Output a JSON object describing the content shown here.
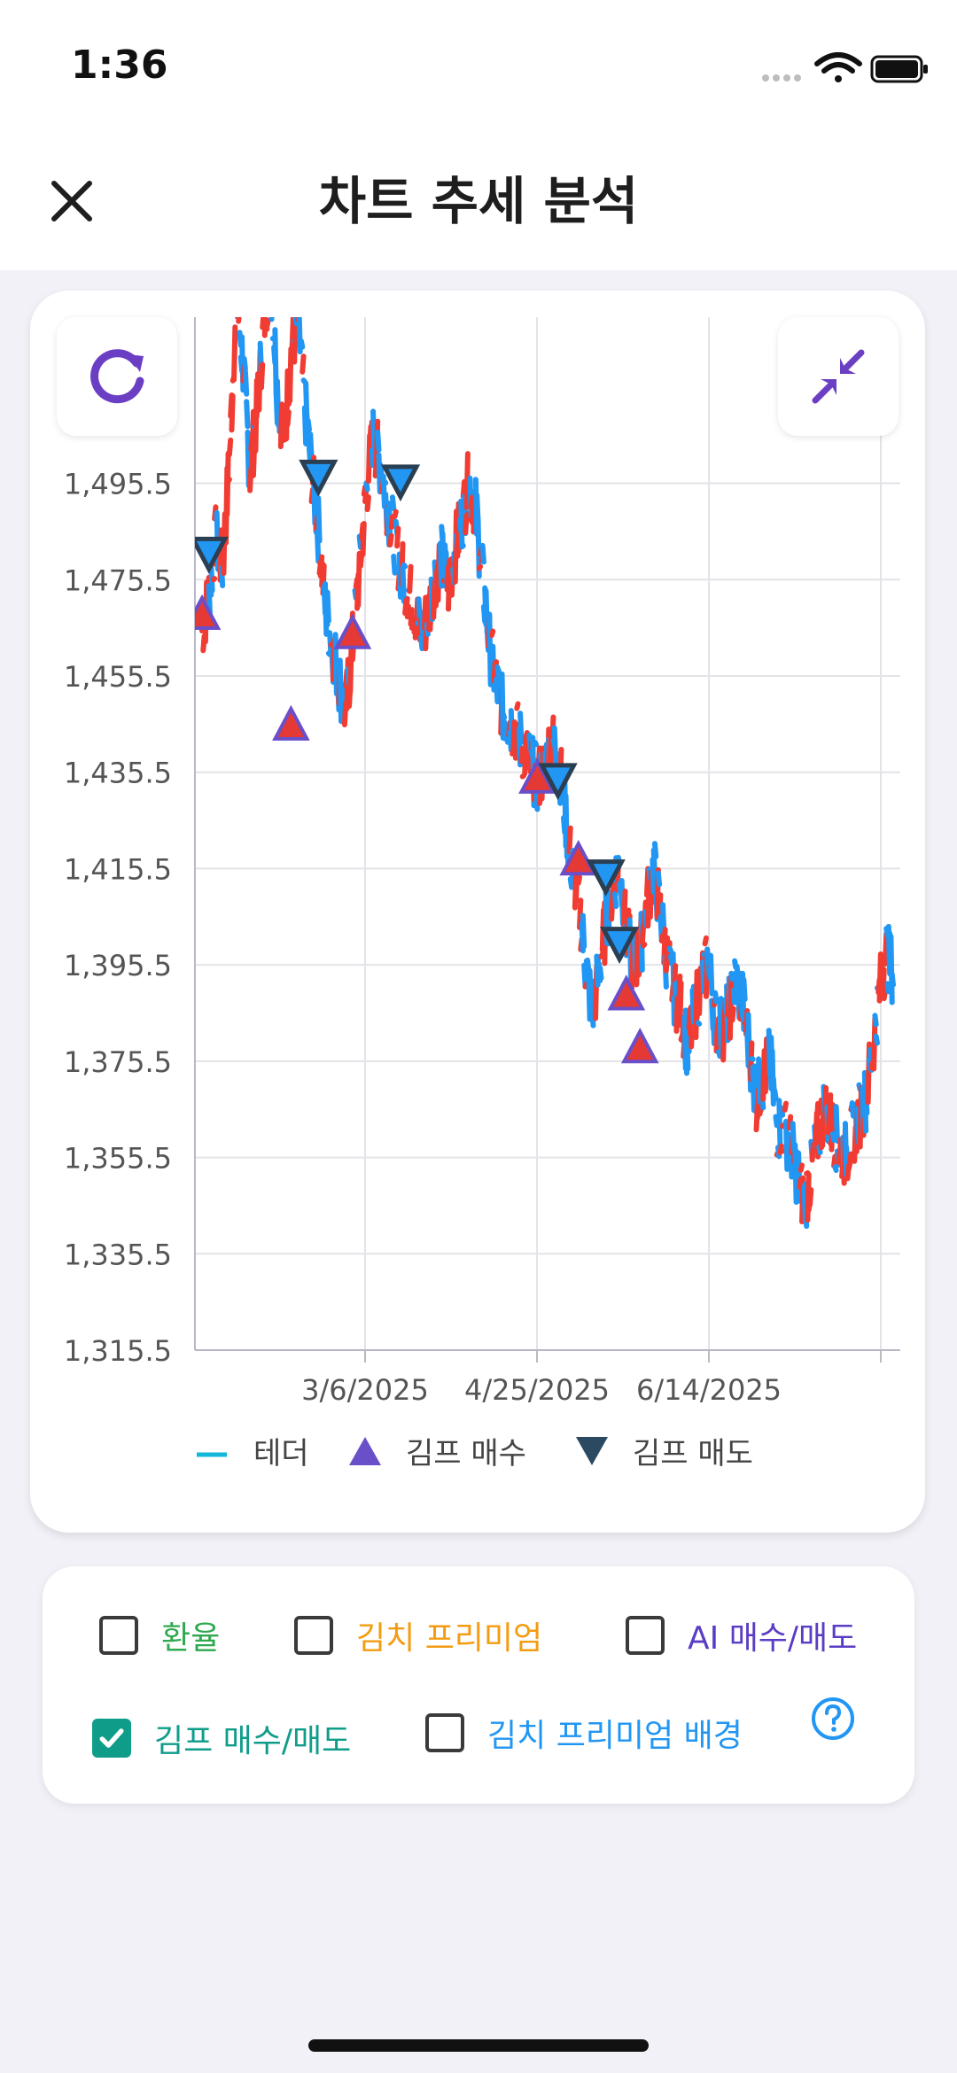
{
  "status": {
    "time": "1:36"
  },
  "header": {
    "title": "차트 추세 분석"
  },
  "chart_data": {
    "type": "line",
    "y_ticks": [
      "1,495.5",
      "1,475.5",
      "1,455.5",
      "1,435.5",
      "1,415.5",
      "1,395.5",
      "1,375.5",
      "1,355.5",
      "1,335.5",
      "1,315.5"
    ],
    "ylim": [
      1315.5,
      1530
    ],
    "x_ticks": [
      "3/6/2025",
      "4/25/2025",
      "6/14/2025"
    ],
    "series": [
      {
        "name": "테더",
        "color": "#2196f3",
        "values": [
          1465,
          1472,
          1484,
          1478,
          1500,
          1535,
          1520,
          1498,
          1510,
          1528,
          1540,
          1515,
          1505,
          1522,
          1530,
          1512,
          1498,
          1486,
          1470,
          1462,
          1455,
          1448,
          1462,
          1478,
          1494,
          1505,
          1500,
          1492,
          1485,
          1478,
          1474,
          1470,
          1464,
          1468,
          1476,
          1480,
          1474,
          1482,
          1488,
          1496,
          1490,
          1476,
          1462,
          1454,
          1448,
          1446,
          1444,
          1440,
          1437,
          1434,
          1436,
          1442,
          1440,
          1428,
          1416,
          1410,
          1396,
          1386,
          1394,
          1404,
          1412,
          1416,
          1402,
          1396,
          1398,
          1408,
          1416,
          1406,
          1396,
          1390,
          1386,
          1378,
          1386,
          1392,
          1396,
          1384,
          1382,
          1386,
          1392,
          1388,
          1378,
          1368,
          1372,
          1376,
          1362,
          1362,
          1358,
          1352,
          1346,
          1352,
          1360,
          1366,
          1362,
          1358,
          1356,
          1360,
          1364,
          1368,
          1378,
          1390,
          1398,
          1394
        ]
      }
    ],
    "markers_buy": [
      {
        "label": "김프 매수",
        "color": "#e53935",
        "border": "#6a4fc8",
        "points": [
          [
            0,
            1468
          ],
          [
            13,
            1445
          ],
          [
            22,
            1464
          ],
          [
            49,
            1434
          ],
          [
            55,
            1417
          ],
          [
            62,
            1389
          ],
          [
            64,
            1378
          ]
        ]
      }
    ],
    "markers_sell": [
      {
        "label": "김프 매도",
        "color": "#2196f3",
        "border": "#2b3f52",
        "points": [
          [
            1,
            1481
          ],
          [
            17,
            1497
          ],
          [
            29,
            1496
          ],
          [
            52,
            1434
          ],
          [
            59,
            1414
          ],
          [
            61,
            1400
          ]
        ]
      }
    ],
    "legend": [
      {
        "label": "테더",
        "symbol": "line",
        "color": "#12b7d9"
      },
      {
        "label": "김프 매수",
        "symbol": "triangle-up",
        "color": "#6a4fc8"
      },
      {
        "label": "김프 매도",
        "symbol": "triangle-down",
        "color": "#2b4a62"
      }
    ]
  },
  "controls": {
    "exchange_rate": {
      "label": "환율",
      "color": "#2fa84f",
      "checked": false
    },
    "kimchi_premium": {
      "label": "김치 프리미엄",
      "color": "#f39c12",
      "checked": false
    },
    "ai_trade": {
      "label": "AI 매수/매도",
      "color": "#5b3cc4",
      "checked": false
    },
    "kimp_trade": {
      "label": "김프 매수/매도",
      "color": "#0f9d8a",
      "checked": true
    },
    "kimchi_bg": {
      "label": "김치 프리미엄 배경",
      "color": "#2196f3",
      "checked": false
    }
  },
  "icons": {
    "close": "close-icon",
    "refresh": "refresh-icon",
    "collapse": "collapse-icon",
    "help": "help-icon",
    "wifi": "wifi-icon",
    "battery": "battery-icon",
    "signal": "signal-icon"
  }
}
